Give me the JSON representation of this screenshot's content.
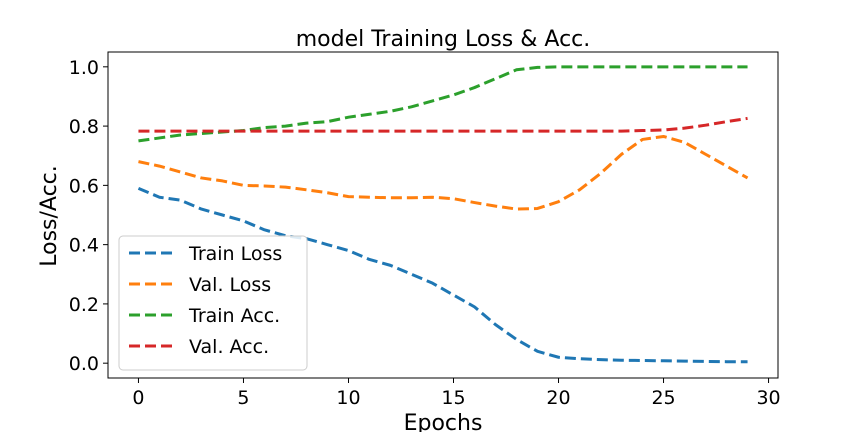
{
  "chart_data": {
    "type": "line",
    "title": "model Training Loss & Acc.",
    "xlabel": "Epochs",
    "ylabel": "Loss/Acc.",
    "xlim": [
      -1.45,
      30.45
    ],
    "ylim": [
      -0.05,
      1.05
    ],
    "xticks": [
      "0",
      "5",
      "10",
      "15",
      "20",
      "25",
      "30"
    ],
    "yticks": [
      "0.0",
      "0.2",
      "0.4",
      "0.6",
      "0.8",
      "1.0"
    ],
    "grid": false,
    "legend_position": "lower-left",
    "line_style": "dashed",
    "x": [
      0,
      1,
      2,
      3,
      4,
      5,
      6,
      7,
      8,
      9,
      10,
      11,
      12,
      13,
      14,
      15,
      16,
      17,
      18,
      19,
      20,
      21,
      22,
      23,
      24,
      25,
      26,
      27,
      28,
      29
    ],
    "series": [
      {
        "name": "Train Loss",
        "color": "#1f77b4",
        "values": [
          0.59,
          0.56,
          0.55,
          0.52,
          0.5,
          0.48,
          0.45,
          0.43,
          0.42,
          0.4,
          0.38,
          0.35,
          0.33,
          0.3,
          0.27,
          0.23,
          0.19,
          0.13,
          0.08,
          0.04,
          0.02,
          0.015,
          0.012,
          0.01,
          0.009,
          0.008,
          0.007,
          0.006,
          0.005,
          0.005
        ]
      },
      {
        "name": "Val. Loss",
        "color": "#ff7f0e",
        "values": [
          0.68,
          0.665,
          0.645,
          0.625,
          0.615,
          0.6,
          0.598,
          0.594,
          0.585,
          0.575,
          0.562,
          0.56,
          0.558,
          0.558,
          0.56,
          0.555,
          0.542,
          0.53,
          0.52,
          0.522,
          0.545,
          0.585,
          0.64,
          0.705,
          0.755,
          0.765,
          0.745,
          0.705,
          0.665,
          0.625
        ]
      },
      {
        "name": "Train Acc.",
        "color": "#2ca02c",
        "values": [
          0.75,
          0.76,
          0.77,
          0.775,
          0.78,
          0.785,
          0.795,
          0.8,
          0.81,
          0.815,
          0.83,
          0.84,
          0.85,
          0.865,
          0.885,
          0.905,
          0.93,
          0.96,
          0.99,
          0.998,
          1.0,
          1.0,
          1.0,
          1.0,
          1.0,
          1.0,
          1.0,
          1.0,
          1.0,
          1.0
        ]
      },
      {
        "name": "Val. Acc.",
        "color": "#d62728",
        "values": [
          0.783,
          0.783,
          0.783,
          0.783,
          0.783,
          0.783,
          0.783,
          0.783,
          0.783,
          0.783,
          0.783,
          0.783,
          0.783,
          0.783,
          0.783,
          0.783,
          0.783,
          0.783,
          0.783,
          0.783,
          0.783,
          0.783,
          0.783,
          0.783,
          0.785,
          0.787,
          0.793,
          0.803,
          0.815,
          0.826
        ]
      }
    ]
  }
}
